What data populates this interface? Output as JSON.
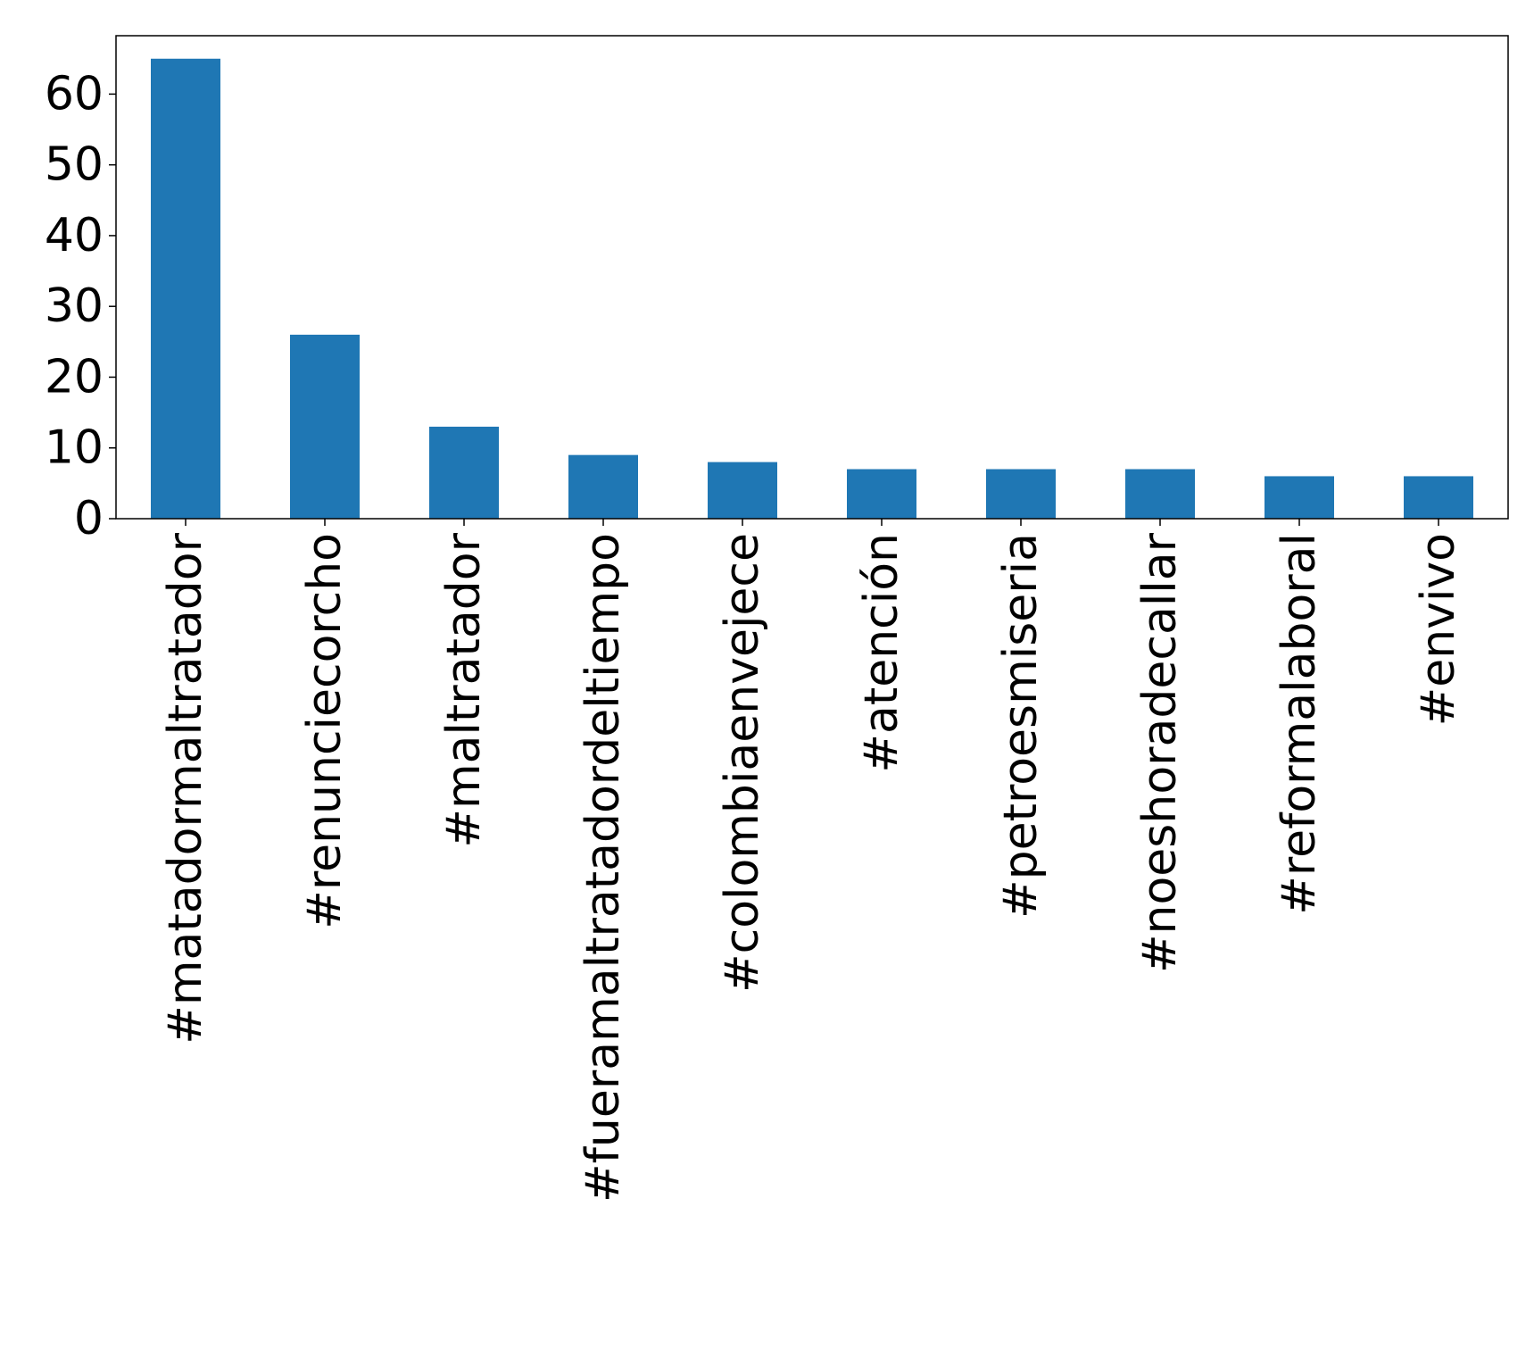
{
  "chart_data": {
    "type": "bar",
    "categories": [
      "#matadormaltratador",
      "#renunciecorcho",
      "#maltratador",
      "#fueramaltratadordeltiempo",
      "#colombiaenvejece",
      "#atención",
      "#petroesmiseria",
      "#noeshoradecallar",
      "#reformalaboral",
      "#envivo"
    ],
    "values": [
      65,
      26,
      13,
      9,
      8,
      7,
      7,
      7,
      6,
      6
    ],
    "yticks": [
      0,
      10,
      20,
      30,
      40,
      50,
      60
    ],
    "ylim": [
      0,
      68.25
    ],
    "title": "",
    "xlabel": "",
    "ylabel": "",
    "grid": false,
    "legend": false,
    "bar_color": "#1f77b4"
  }
}
